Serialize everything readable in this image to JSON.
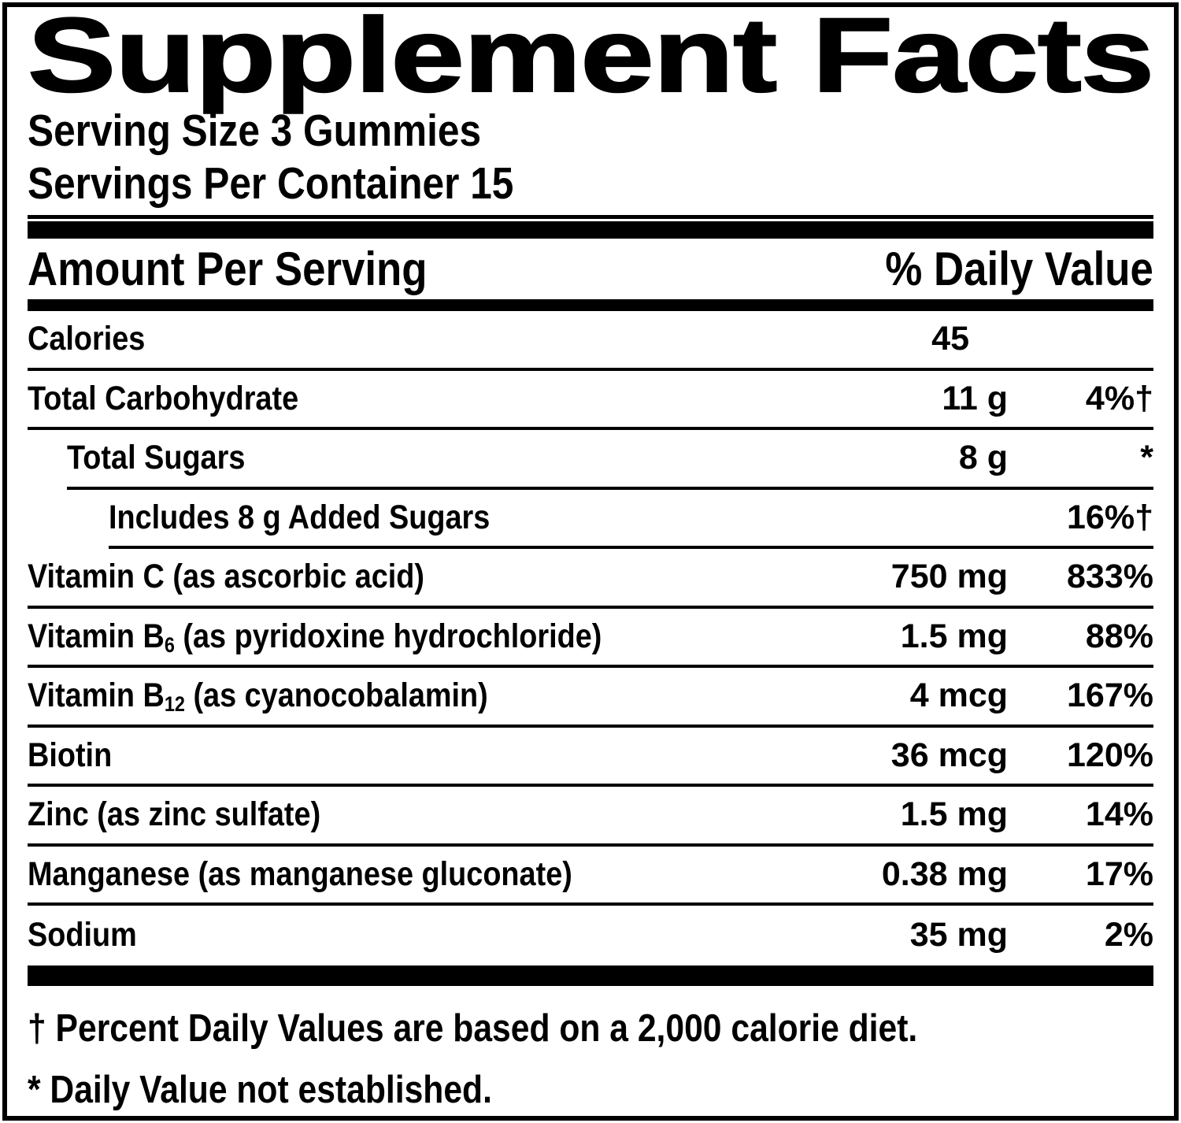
{
  "label": {
    "title": "Supplement Facts",
    "serving_size": "Serving Size 3 Gummies",
    "servings_per_container": "Servings Per Container 15",
    "header": {
      "amount_label": "Amount Per Serving",
      "dv_label": "% Daily Value"
    },
    "rows": [
      {
        "name": "Calories",
        "amount": "45",
        "dv": "",
        "indent": 0,
        "amount_pad": true
      },
      {
        "name": "Total Carbohydrate",
        "amount": "11 g",
        "dv": "4%†",
        "indent": 0
      },
      {
        "name": "Total Sugars",
        "amount": "8 g",
        "dv": "*",
        "indent": 1
      },
      {
        "name": "Includes 8 g Added Sugars",
        "amount": "",
        "dv": "16%†",
        "indent": 2
      },
      {
        "name": "Vitamin C (as ascorbic acid)",
        "amount": "750 mg",
        "dv": "833%",
        "indent": 0
      },
      {
        "name": "Vitamin B",
        "sub": "6",
        "name_rest": " (as pyridoxine hydrochloride)",
        "amount": "1.5 mg",
        "dv": "88%",
        "indent": 0
      },
      {
        "name": "Vitamin B",
        "sub": "12",
        "name_rest": " (as cyanocobalamin)",
        "amount": "4 mcg",
        "dv": "167%",
        "indent": 0
      },
      {
        "name": "Biotin",
        "amount": "36 mcg",
        "dv": "120%",
        "indent": 0
      },
      {
        "name": "Zinc (as zinc sulfate)",
        "amount": "1.5 mg",
        "dv": "14%",
        "indent": 0
      },
      {
        "name": "Manganese (as manganese gluconate)",
        "amount": "0.38 mg",
        "dv": "17%",
        "indent": 0
      },
      {
        "name": "Sodium",
        "amount": "35 mg",
        "dv": "2%",
        "indent": 0
      }
    ],
    "footnotes": [
      "† Percent Daily Values are based on a 2,000 calorie diet.",
      "* Daily Value not established."
    ],
    "colors": {
      "ink": "#000000",
      "background": "#ffffff"
    }
  }
}
